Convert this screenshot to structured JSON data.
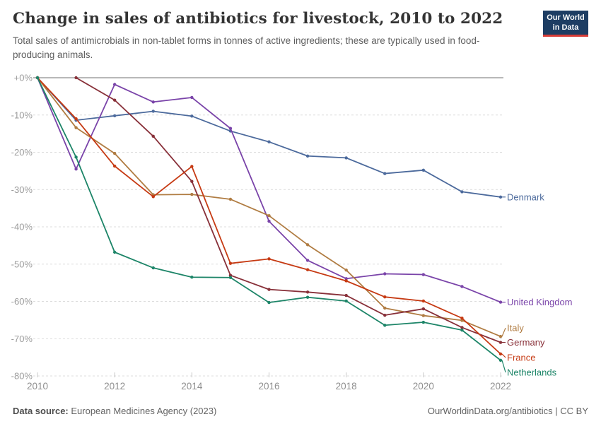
{
  "header": {
    "title": "Change in sales of antibiotics for livestock, 2010 to 2022",
    "subtitle": "Total sales of antimicrobials in non-tablet forms in tonnes of active ingredients; these are typically used in food-producing animals.",
    "logo": {
      "line1": "Our World",
      "line2": "in Data",
      "bg_color": "#1D3D63",
      "accent_color": "#D73C37"
    }
  },
  "chart_data": {
    "type": "line",
    "title": "Change in sales of antibiotics for livestock, 2010 to 2022",
    "xlim": [
      2010,
      2022
    ],
    "ylim": [
      -80,
      0
    ],
    "grid": "horizontal-dashed",
    "legend_position": "right-of-line-ends",
    "x_ticks": [
      {
        "label": "2010",
        "value": 2010
      },
      {
        "label": "2012",
        "value": 2012
      },
      {
        "label": "2014",
        "value": 2014
      },
      {
        "label": "2016",
        "value": 2016
      },
      {
        "label": "2018",
        "value": 2018
      },
      {
        "label": "2020",
        "value": 2020
      },
      {
        "label": "2022",
        "value": 2022
      }
    ],
    "y_ticks": [
      {
        "label": "+0%",
        "value": 0
      },
      {
        "label": "-10%",
        "value": -10
      },
      {
        "label": "-20%",
        "value": -20
      },
      {
        "label": "-30%",
        "value": -30
      },
      {
        "label": "-40%",
        "value": -40
      },
      {
        "label": "-50%",
        "value": -50
      },
      {
        "label": "-60%",
        "value": -60
      },
      {
        "label": "-70%",
        "value": -70
      },
      {
        "label": "-80%",
        "value": -80
      }
    ],
    "series": [
      {
        "name": "Denmark",
        "color": "#4C6A9C",
        "x": [
          2010,
          2011,
          2012,
          2013,
          2014,
          2015,
          2016,
          2017,
          2018,
          2019,
          2020,
          2021,
          2022
        ],
        "values": [
          0,
          -11.4,
          -10.2,
          -9,
          -10.3,
          -14.3,
          -17.2,
          -21,
          -21.5,
          -25.7,
          -24.8,
          -30.6,
          -32
        ]
      },
      {
        "name": "United Kingdom",
        "color": "#7A44A9",
        "x": [
          2010,
          2011,
          2012,
          2013,
          2014,
          2015,
          2016,
          2017,
          2018,
          2019,
          2020,
          2021,
          2022
        ],
        "values": [
          0,
          -24.5,
          -1.8,
          -6.5,
          -5.3,
          -13.6,
          -38.5,
          -49,
          -53.9,
          -52.6,
          -52.8,
          -56,
          -60.2
        ]
      },
      {
        "name": "Italy",
        "color": "#B07C42",
        "x": [
          2010,
          2011,
          2012,
          2013,
          2014,
          2015,
          2016,
          2017,
          2018,
          2019,
          2020,
          2021,
          2022
        ],
        "values": [
          0,
          -13.4,
          -20.3,
          -31.4,
          -31.3,
          -32.6,
          -37,
          -44.8,
          -51.6,
          -61.8,
          -63.8,
          -65.1,
          -69.4
        ]
      },
      {
        "name": "Germany",
        "color": "#883039",
        "x": [
          2011,
          2012,
          2013,
          2014,
          2015,
          2016,
          2017,
          2018,
          2019,
          2020,
          2021,
          2022
        ],
        "values": [
          0,
          -6,
          -15.7,
          -27.8,
          -53,
          -56.8,
          -57.5,
          -58.4,
          -63.7,
          -62,
          -67,
          -71
        ]
      },
      {
        "name": "France",
        "color": "#C63A13",
        "x": [
          2010,
          2011,
          2012,
          2013,
          2014,
          2015,
          2016,
          2017,
          2018,
          2019,
          2020,
          2021,
          2022
        ],
        "values": [
          0,
          -11,
          -23.7,
          -31.9,
          -23.8,
          -49.8,
          -48.6,
          -51.5,
          -54.5,
          -58.8,
          -59.9,
          -64.5,
          -74.1
        ]
      },
      {
        "name": "Netherlands",
        "color": "#1D8568",
        "x": [
          2010,
          2011,
          2012,
          2013,
          2014,
          2015,
          2016,
          2017,
          2018,
          2019,
          2020,
          2021,
          2022
        ],
        "values": [
          0,
          -21.3,
          -46.8,
          -51,
          -53.5,
          -53.6,
          -60.3,
          -58.9,
          -59.9,
          -66.4,
          -65.6,
          -67.7,
          -75.8
        ]
      }
    ]
  },
  "footer": {
    "source_label": "Data source:",
    "source_value": " European Medicines Agency (2023)",
    "credit": "OurWorldinData.org/antibiotics | CC BY"
  }
}
